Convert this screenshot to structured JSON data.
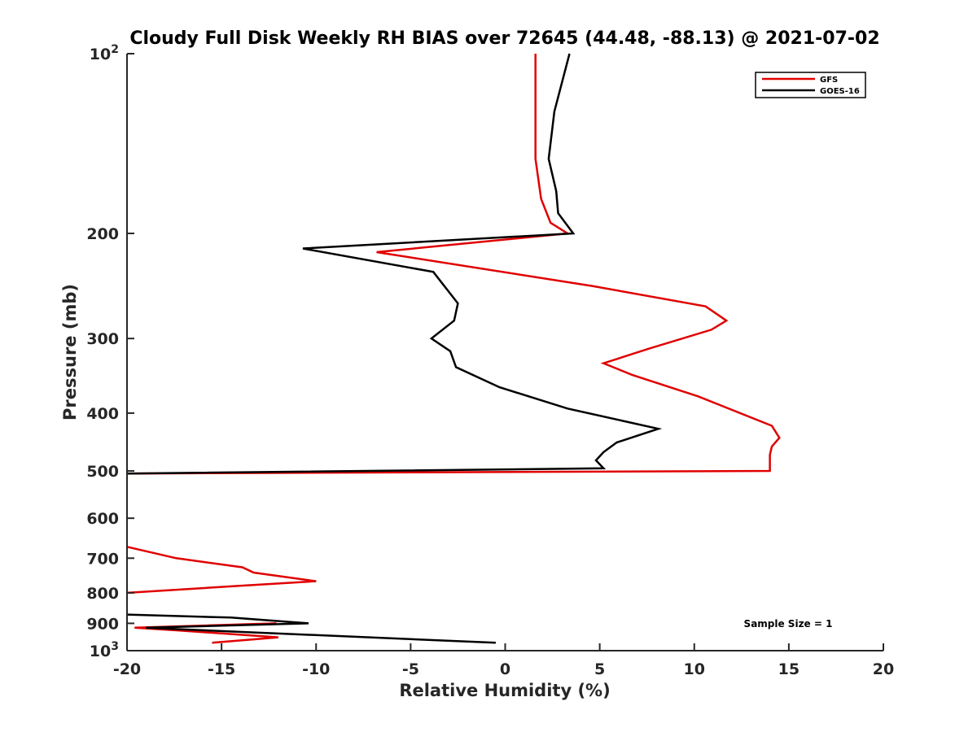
{
  "chart_data": {
    "type": "line",
    "title": "Cloudy Full Disk Weekly RH BIAS over 72645 (44.48, -88.13) @ 2021-07-02",
    "xlabel": "Relative Humidity (%)",
    "ylabel": "Pressure (mb)",
    "xlim": [
      -20,
      20
    ],
    "ylim": [
      100,
      1000
    ],
    "y_scale": "log",
    "y_reversed": true,
    "x_ticks": [
      -20,
      -15,
      -10,
      -5,
      0,
      5,
      10,
      15,
      20
    ],
    "x_tick_labels": [
      "-20",
      "-15",
      "-10",
      "-5",
      "0",
      "5",
      "10",
      "15",
      "20"
    ],
    "y_ticks": [
      100,
      200,
      300,
      400,
      500,
      600,
      700,
      800,
      900,
      1000
    ],
    "y_tick_labels": [
      {
        "base": "10",
        "exp": "2"
      },
      {
        "base": "200",
        "exp": ""
      },
      {
        "base": "300",
        "exp": ""
      },
      {
        "base": "400",
        "exp": ""
      },
      {
        "base": "500",
        "exp": ""
      },
      {
        "base": "600",
        "exp": ""
      },
      {
        "base": "700",
        "exp": ""
      },
      {
        "base": "800",
        "exp": ""
      },
      {
        "base": "900",
        "exp": ""
      },
      {
        "base": "10",
        "exp": "3"
      }
    ],
    "grid": false,
    "legend_position": "top-right",
    "annotation": "Sample Size = 1",
    "series": [
      {
        "name": "GFS",
        "color": "#e00000",
        "points": [
          [
            1.6,
            100
          ],
          [
            1.6,
            150
          ],
          [
            1.9,
            175
          ],
          [
            2.4,
            192
          ],
          [
            3.3,
            200
          ],
          [
            -6.8,
            215
          ],
          [
            4.6,
            245
          ],
          [
            10.6,
            265
          ],
          [
            11.7,
            280
          ],
          [
            10.9,
            290
          ],
          [
            7.6,
            312
          ],
          [
            5.2,
            330
          ],
          [
            6.7,
            345
          ],
          [
            10.2,
            375
          ],
          [
            14.1,
            420
          ],
          [
            14.5,
            440
          ],
          [
            14.1,
            455
          ],
          [
            14.0,
            470
          ],
          [
            14.0,
            500
          ],
          [
            -20.0,
            505
          ],
          null,
          [
            -20.0,
            670
          ],
          [
            -17.4,
            700
          ],
          [
            -13.9,
            725
          ],
          [
            -13.3,
            740
          ],
          [
            -10.0,
            765
          ],
          [
            -14.4,
            780
          ],
          [
            -20.0,
            800
          ],
          null,
          [
            -12.1,
            900
          ],
          [
            -19.6,
            915
          ],
          [
            -17.3,
            925
          ],
          [
            -12.0,
            950
          ],
          [
            -15.5,
            970
          ]
        ]
      },
      {
        "name": "GOES-16",
        "color": "#000000",
        "points": [
          [
            3.4,
            100
          ],
          [
            2.6,
            125
          ],
          [
            2.3,
            150
          ],
          [
            2.7,
            170
          ],
          [
            2.8,
            185
          ],
          [
            3.6,
            200
          ],
          [
            -10.7,
            212
          ],
          [
            -3.8,
            232
          ],
          [
            -2.5,
            262
          ],
          [
            -2.7,
            280
          ],
          [
            -3.9,
            300
          ],
          [
            -2.9,
            315
          ],
          [
            -2.6,
            335
          ],
          [
            -0.3,
            362
          ],
          [
            3.3,
            393
          ],
          [
            8.1,
            425
          ],
          [
            5.9,
            448
          ],
          [
            5.2,
            465
          ],
          [
            4.8,
            480
          ],
          [
            5.2,
            495
          ],
          [
            -20.0,
            505
          ],
          null,
          [
            -20.0,
            870
          ],
          [
            -14.5,
            880
          ],
          [
            -10.4,
            900
          ],
          [
            -19.0,
            915
          ],
          [
            -17.5,
            920
          ],
          [
            -0.5,
            970
          ]
        ]
      }
    ]
  }
}
